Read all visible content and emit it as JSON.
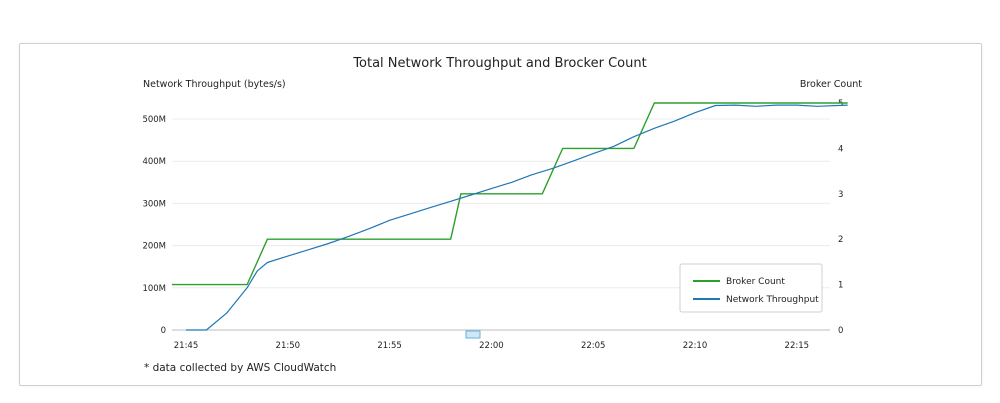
{
  "chart_data": {
    "type": "line",
    "title": "Total Network Throughput and Brocker Count",
    "ylabel_left": "Network Throughput (bytes/s)",
    "ylabel_right": "Broker Count",
    "x_ticks": [
      "21:45",
      "21:50",
      "21:55",
      "22:00",
      "22:05",
      "22:10",
      "22:15"
    ],
    "y_left_ticks": [
      "0",
      "100M",
      "200M",
      "300M",
      "400M",
      "500M"
    ],
    "y_right_ticks": [
      "0",
      "1",
      "2",
      "3",
      "4",
      "5"
    ],
    "ylim_left": [
      0,
      540
    ],
    "ylim_right": [
      0,
      5
    ],
    "xlim": [
      0,
      32.5
    ],
    "series": [
      {
        "name": "Broker Count",
        "color": "#2ca02c",
        "x": [
          0,
          3,
          4,
          8,
          8.5,
          13,
          13.5,
          17.5,
          18.5,
          22,
          23,
          32.5
        ],
        "values": [
          1,
          1,
          2,
          2,
          2,
          2,
          3,
          3,
          4,
          4,
          5,
          5
        ]
      },
      {
        "name": "Network Throughput",
        "color": "#1f77b4",
        "x": [
          0,
          1,
          2,
          3,
          3.5,
          4,
          5,
          6,
          7,
          8,
          9,
          10,
          11,
          12,
          13,
          14,
          15,
          16,
          17,
          18,
          19,
          20,
          21,
          22,
          23,
          24,
          25,
          26,
          27,
          28,
          29,
          30,
          31,
          32.5
        ],
        "values": [
          0,
          0,
          40,
          100,
          140,
          160,
          175,
          190,
          205,
          222,
          240,
          260,
          275,
          290,
          305,
          320,
          335,
          350,
          368,
          383,
          400,
          418,
          435,
          458,
          478,
          495,
          515,
          532,
          533,
          530,
          533,
          533,
          530,
          533
        ]
      }
    ],
    "legend": {
      "position": "bottom-right",
      "entries": [
        "Broker Count",
        "Network Throughput"
      ]
    },
    "footnote": "* data collected by AWS CloudWatch"
  }
}
